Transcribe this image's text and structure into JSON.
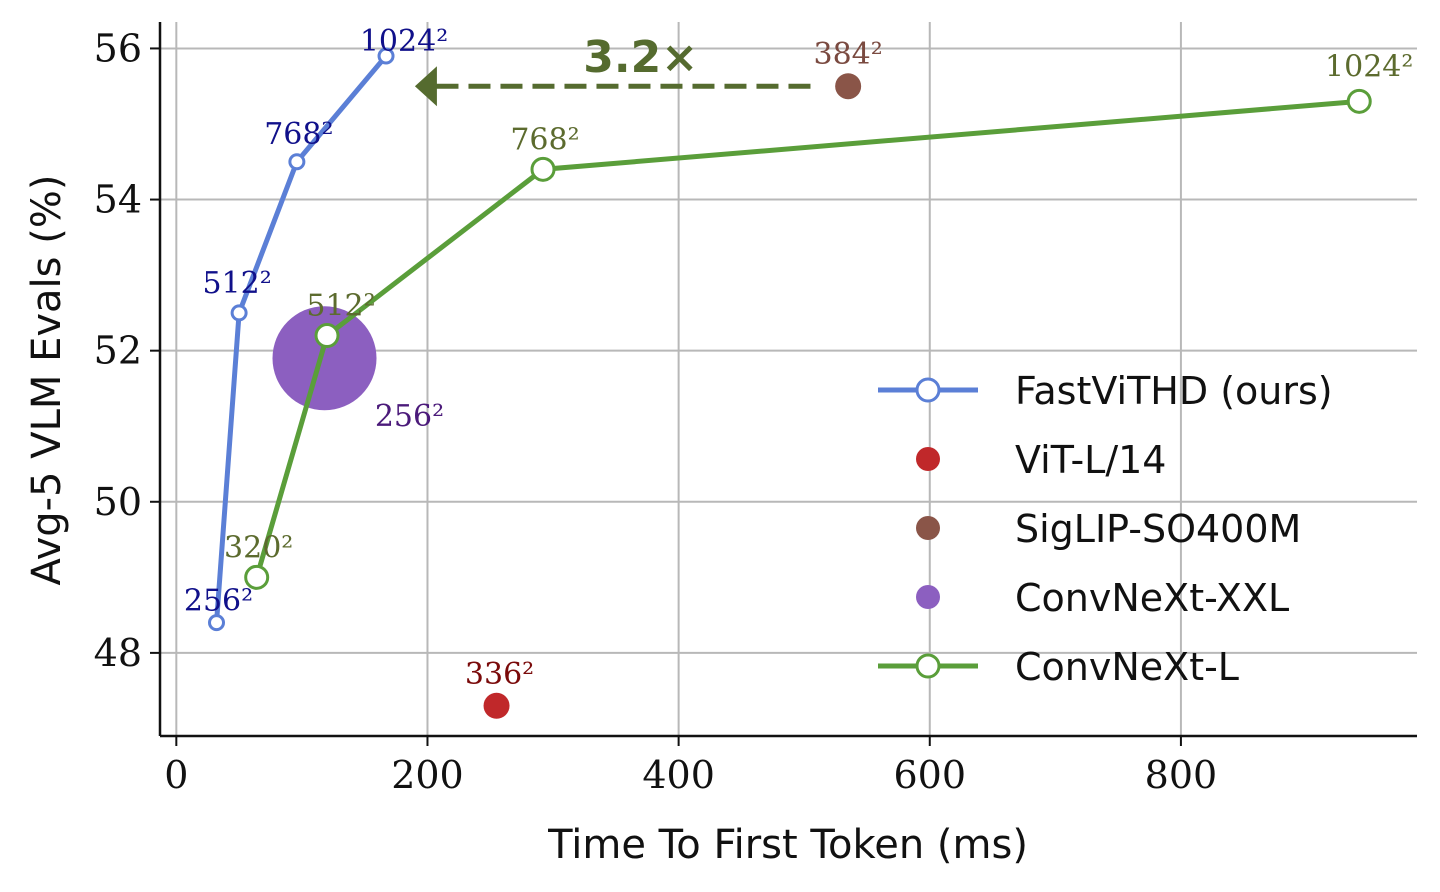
{
  "chart_data": {
    "type": "line",
    "xlabel": "Time To First Token (ms)",
    "ylabel": "Avg-5 VLM Evals (%)",
    "xlim": [
      -13,
      988
    ],
    "ylim": [
      46.9,
      56.35
    ],
    "xticks": [
      0,
      200,
      400,
      600,
      800
    ],
    "yticks": [
      48,
      50,
      52,
      54,
      56
    ],
    "grid": true,
    "legend_position": "bottom-right",
    "series": [
      {
        "name": "FastViTHD (ours)",
        "kind": "line",
        "color": "#5b7fd6",
        "label_color": "#10108a",
        "points": [
          {
            "x": 32,
            "y": 48.4,
            "label": "256²"
          },
          {
            "x": 50,
            "y": 52.5,
            "label": "512²"
          },
          {
            "x": 96,
            "y": 54.5,
            "label": "768²"
          },
          {
            "x": 167,
            "y": 55.9,
            "label": "1024²"
          }
        ]
      },
      {
        "name": "ViT-L/14",
        "kind": "point",
        "color": "#c0282a",
        "label_color": "#7a0a0a",
        "points": [
          {
            "x": 255,
            "y": 47.3,
            "label": "336²"
          }
        ]
      },
      {
        "name": "SigLIP-SO400M",
        "kind": "point",
        "color": "#8a5548",
        "label_color": "#7a4a40",
        "points": [
          {
            "x": 535,
            "y": 55.5,
            "label": "384²"
          }
        ]
      },
      {
        "name": "ConvNeXt-XXL",
        "kind": "point",
        "color": "#8c5fc0",
        "label_color": "#4b1a7a",
        "points": [
          {
            "x": 118,
            "y": 51.9,
            "label": "256²"
          }
        ]
      },
      {
        "name": "ConvNeXt-L",
        "kind": "line",
        "color": "#5a9e3a",
        "label_color": "#5c6b2e",
        "points": [
          {
            "x": 64,
            "y": 49.0,
            "label": "320²"
          },
          {
            "x": 120,
            "y": 52.2,
            "label": "512²"
          },
          {
            "x": 292,
            "y": 54.4,
            "label": "768²"
          },
          {
            "x": 942,
            "y": 55.3,
            "label": "1024²"
          }
        ]
      }
    ],
    "annotation": {
      "text": "3.2×",
      "from": {
        "x": 505,
        "y": 55.5
      },
      "to": {
        "x": 190,
        "y": 55.5
      },
      "color": "#556b2f"
    }
  }
}
